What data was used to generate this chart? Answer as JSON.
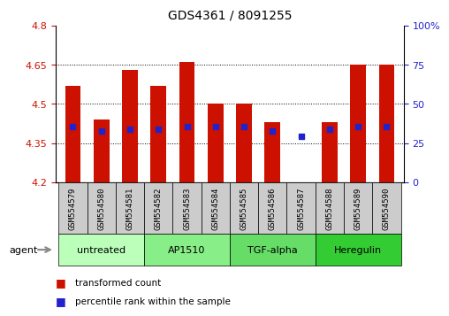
{
  "title": "GDS4361 / 8091255",
  "samples": [
    "GSM554579",
    "GSM554580",
    "GSM554581",
    "GSM554582",
    "GSM554583",
    "GSM554584",
    "GSM554585",
    "GSM554586",
    "GSM554587",
    "GSM554588",
    "GSM554589",
    "GSM554590"
  ],
  "bar_heights": [
    4.57,
    4.44,
    4.63,
    4.57,
    4.66,
    4.5,
    4.5,
    4.43,
    4.2,
    4.43,
    4.65,
    4.65
  ],
  "blue_dot_y": [
    4.415,
    4.395,
    4.405,
    4.405,
    4.415,
    4.415,
    4.415,
    4.395,
    4.375,
    4.405,
    4.415,
    4.415
  ],
  "bar_bottom": 4.2,
  "ylim": [
    4.2,
    4.8
  ],
  "yticks_left": [
    4.2,
    4.35,
    4.5,
    4.65,
    4.8
  ],
  "ytick_labels_left": [
    "4.2",
    "4.35",
    "4.5",
    "4.65",
    "4.8"
  ],
  "yticks_right_vals": [
    0,
    25,
    50,
    75,
    100
  ],
  "ytick_labels_right": [
    "0",
    "25",
    "50",
    "75",
    "100%"
  ],
  "bar_color": "#cc1100",
  "blue_dot_color": "#2222cc",
  "grid_yticks": [
    4.35,
    4.5,
    4.65
  ],
  "agents": [
    {
      "label": "untreated",
      "start": 0,
      "end": 3
    },
    {
      "label": "AP1510",
      "start": 3,
      "end": 6
    },
    {
      "label": "TGF-alpha",
      "start": 6,
      "end": 9
    },
    {
      "label": "Heregulin",
      "start": 9,
      "end": 12
    }
  ],
  "agent_colors": [
    "#aaffaa",
    "#aaffaa",
    "#66ee66",
    "#33dd33"
  ],
  "legend_items": [
    {
      "color": "#cc1100",
      "label": "transformed count"
    },
    {
      "color": "#2222cc",
      "label": "percentile rank within the sample"
    }
  ],
  "tick_label_color_left": "#cc1100",
  "tick_label_color_right": "#2222cc",
  "bar_width": 0.55,
  "sample_area_color": "#cccccc",
  "title_fontsize": 10
}
